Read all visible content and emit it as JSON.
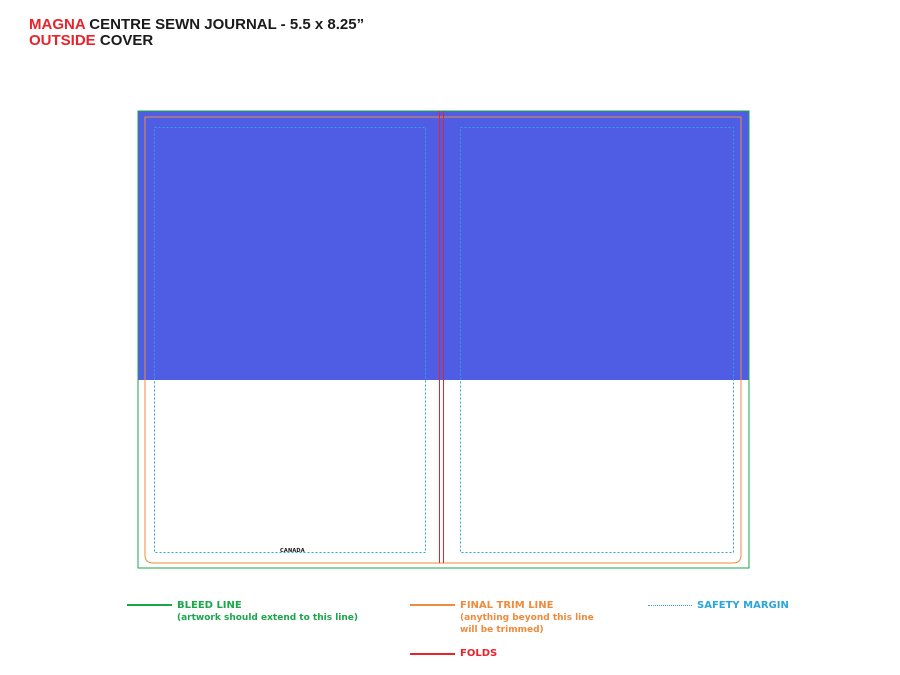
{
  "title": {
    "brand": "MAGNA",
    "product": "CENTRE SEWN JOURNAL - 5.5 x 8.25”",
    "section": "OUTSIDE",
    "section_rest": "COVER"
  },
  "template": {
    "back_cover_text": "CANADA"
  },
  "colors": {
    "artwork_fill": "#4e5de3",
    "bleed": "#19a74a",
    "trim": "#f08a3c",
    "folds": "#e8232b",
    "safety": "#2aa6d8"
  },
  "legend": {
    "bleed": {
      "label": "BLEED LINE",
      "sub": "(artwork should extend to this line)"
    },
    "trim": {
      "label": "FINAL TRIM LINE",
      "sub1": "(anything beyond this line",
      "sub2": "will be trimmed)"
    },
    "folds": {
      "label": "FOLDS"
    },
    "safety": {
      "label": "SAFETY MARGIN"
    }
  }
}
